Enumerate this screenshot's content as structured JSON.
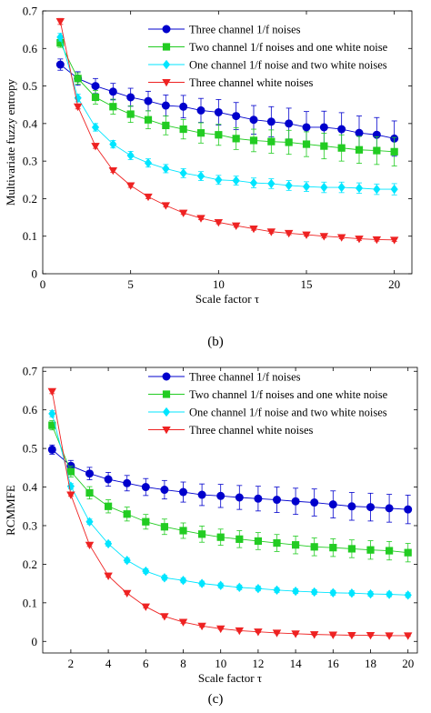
{
  "chart_data": [
    {
      "type": "line",
      "panel_label": "(b)",
      "xlabel": "Scale factor τ",
      "ylabel": "Multivariate fuzzy entropy",
      "xlim": [
        0,
        21
      ],
      "ylim": [
        0,
        0.7
      ],
      "xticks": [
        0,
        5,
        10,
        15,
        20
      ],
      "yticks": [
        0,
        0.1,
        0.2,
        0.3,
        0.4,
        0.5,
        0.6,
        0.7
      ],
      "grid": false,
      "legend": "top-right",
      "x": [
        1,
        2,
        3,
        4,
        5,
        6,
        7,
        8,
        9,
        10,
        11,
        12,
        13,
        14,
        15,
        16,
        17,
        18,
        19,
        20
      ],
      "series": [
        {
          "name": "Three channel 1/f noises",
          "color": "#0000cc",
          "marker": "circle",
          "values": [
            0.557,
            0.52,
            0.5,
            0.485,
            0.47,
            0.46,
            0.448,
            0.445,
            0.435,
            0.43,
            0.42,
            0.41,
            0.405,
            0.4,
            0.39,
            0.39,
            0.385,
            0.375,
            0.37,
            0.36
          ],
          "errors": [
            0.015,
            0.018,
            0.02,
            0.022,
            0.024,
            0.026,
            0.028,
            0.03,
            0.032,
            0.034,
            0.036,
            0.038,
            0.04,
            0.041,
            0.042,
            0.043,
            0.044,
            0.045,
            0.046,
            0.047
          ]
        },
        {
          "name": "Two channel 1/f noises and one white noise",
          "color": "#22cc22",
          "marker": "square",
          "values": [
            0.615,
            0.52,
            0.47,
            0.445,
            0.425,
            0.41,
            0.395,
            0.385,
            0.375,
            0.37,
            0.36,
            0.355,
            0.352,
            0.35,
            0.345,
            0.34,
            0.335,
            0.33,
            0.328,
            0.325
          ],
          "errors": [
            0.012,
            0.015,
            0.018,
            0.02,
            0.022,
            0.024,
            0.025,
            0.026,
            0.027,
            0.028,
            0.029,
            0.03,
            0.031,
            0.032,
            0.033,
            0.034,
            0.035,
            0.036,
            0.037,
            0.038
          ]
        },
        {
          "name": "One channel 1/f noise and two white noises",
          "color": "#00e5ff",
          "marker": "diamond",
          "values": [
            0.63,
            0.468,
            0.39,
            0.345,
            0.315,
            0.295,
            0.28,
            0.268,
            0.26,
            0.25,
            0.248,
            0.242,
            0.24,
            0.235,
            0.232,
            0.23,
            0.23,
            0.228,
            0.225,
            0.225
          ],
          "errors": [
            0.01,
            0.01,
            0.01,
            0.01,
            0.011,
            0.011,
            0.011,
            0.012,
            0.012,
            0.012,
            0.012,
            0.013,
            0.013,
            0.013,
            0.013,
            0.014,
            0.014,
            0.014,
            0.014,
            0.015
          ]
        },
        {
          "name": "Three channel white noises",
          "color": "#ee2222",
          "marker": "triangle-down",
          "values": [
            0.672,
            0.445,
            0.34,
            0.275,
            0.235,
            0.205,
            0.182,
            0.162,
            0.148,
            0.137,
            0.128,
            0.12,
            0.112,
            0.108,
            0.104,
            0.1,
            0.097,
            0.093,
            0.091,
            0.09
          ],
          "errors": [
            0.008,
            0.006,
            0.006,
            0.005,
            0.005,
            0.005,
            0.004,
            0.004,
            0.004,
            0.004,
            0.004,
            0.004,
            0.004,
            0.004,
            0.004,
            0.004,
            0.004,
            0.004,
            0.004,
            0.004
          ]
        }
      ]
    },
    {
      "type": "line",
      "panel_label": "(c)",
      "xlabel": "Scale factor τ",
      "ylabel": "RCMMFE",
      "xlim": [
        0.5,
        20.5
      ],
      "ylim": [
        -0.03,
        0.71
      ],
      "xticks": [
        2,
        4,
        6,
        8,
        10,
        12,
        14,
        16,
        18,
        20
      ],
      "yticks": [
        0,
        0.1,
        0.2,
        0.3,
        0.4,
        0.5,
        0.6,
        0.7
      ],
      "grid": false,
      "legend": "top-right",
      "x": [
        1,
        2,
        3,
        4,
        5,
        6,
        7,
        8,
        9,
        10,
        11,
        12,
        13,
        14,
        15,
        16,
        17,
        18,
        19,
        20
      ],
      "series": [
        {
          "name": "Three channel 1/f noises",
          "color": "#0000cc",
          "marker": "circle",
          "values": [
            0.497,
            0.455,
            0.435,
            0.42,
            0.41,
            0.4,
            0.393,
            0.387,
            0.38,
            0.377,
            0.373,
            0.37,
            0.367,
            0.363,
            0.36,
            0.355,
            0.35,
            0.348,
            0.345,
            0.342
          ],
          "errors": [
            0.012,
            0.014,
            0.016,
            0.018,
            0.02,
            0.022,
            0.024,
            0.026,
            0.028,
            0.03,
            0.031,
            0.032,
            0.033,
            0.034,
            0.035,
            0.035,
            0.036,
            0.036,
            0.036,
            0.037
          ]
        },
        {
          "name": "Two channel 1/f noises and one white noise",
          "color": "#22cc22",
          "marker": "square",
          "values": [
            0.56,
            0.44,
            0.385,
            0.35,
            0.33,
            0.31,
            0.297,
            0.287,
            0.278,
            0.27,
            0.265,
            0.26,
            0.255,
            0.25,
            0.245,
            0.243,
            0.24,
            0.237,
            0.235,
            0.23
          ],
          "errors": [
            0.012,
            0.014,
            0.016,
            0.017,
            0.018,
            0.019,
            0.02,
            0.02,
            0.021,
            0.021,
            0.022,
            0.022,
            0.022,
            0.023,
            0.023,
            0.023,
            0.023,
            0.024,
            0.024,
            0.024
          ]
        },
        {
          "name": "One channel 1/f noise and two white noises",
          "color": "#00e5ff",
          "marker": "diamond",
          "values": [
            0.59,
            0.402,
            0.31,
            0.253,
            0.21,
            0.182,
            0.165,
            0.158,
            0.15,
            0.145,
            0.14,
            0.137,
            0.133,
            0.13,
            0.128,
            0.126,
            0.125,
            0.123,
            0.122,
            0.12
          ],
          "errors": [
            0.008,
            0.007,
            0.007,
            0.006,
            0.006,
            0.006,
            0.006,
            0.006,
            0.006,
            0.006,
            0.006,
            0.006,
            0.006,
            0.006,
            0.006,
            0.006,
            0.006,
            0.006,
            0.006,
            0.006
          ]
        },
        {
          "name": "Three channel white noises",
          "color": "#ee2222",
          "marker": "triangle-down",
          "values": [
            0.648,
            0.38,
            0.25,
            0.17,
            0.125,
            0.09,
            0.065,
            0.05,
            0.04,
            0.033,
            0.028,
            0.025,
            0.022,
            0.02,
            0.018,
            0.017,
            0.016,
            0.016,
            0.015,
            0.015
          ],
          "errors": [
            0.006,
            0.004,
            0.004,
            0.003,
            0.003,
            0.003,
            0.003,
            0.003,
            0.003,
            0.002,
            0.002,
            0.002,
            0.002,
            0.002,
            0.002,
            0.002,
            0.002,
            0.002,
            0.002,
            0.002
          ]
        }
      ]
    }
  ]
}
